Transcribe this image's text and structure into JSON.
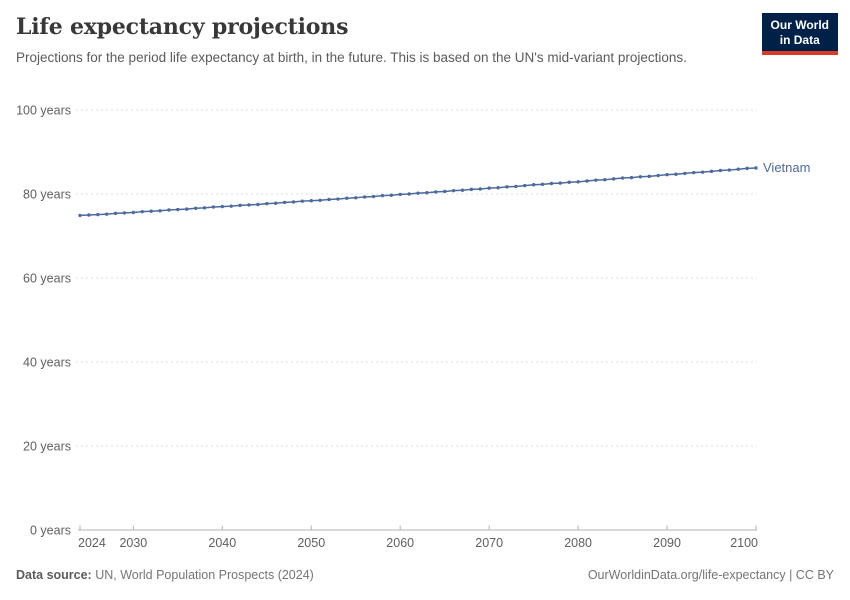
{
  "header": {
    "title": "Life expectancy projections",
    "subtitle": "Projections for the period life expectancy at birth, in the future. This is based on the UN's mid-variant projections.",
    "logo": {
      "line1": "Our World",
      "line2": "in Data",
      "bg_color": "#002147",
      "accent_color": "#D93A2B"
    }
  },
  "chart_data": {
    "type": "line",
    "title": "Life expectancy projections",
    "xlabel": "",
    "ylabel": "",
    "xlim": [
      2024,
      2100
    ],
    "ylim": [
      0,
      100
    ],
    "grid": "horizontal-dashed",
    "legend_position": "end-of-line-label",
    "x_ticks": [
      2024,
      2030,
      2040,
      2050,
      2060,
      2070,
      2080,
      2090,
      2100
    ],
    "y_ticks": [
      {
        "value": 0,
        "label": "0 years"
      },
      {
        "value": 20,
        "label": "20 years"
      },
      {
        "value": 40,
        "label": "40 years"
      },
      {
        "value": 60,
        "label": "60 years"
      },
      {
        "value": 80,
        "label": "80 years"
      },
      {
        "value": 100,
        "label": "100 years"
      }
    ],
    "x": [
      2024,
      2025,
      2026,
      2027,
      2028,
      2029,
      2030,
      2031,
      2032,
      2033,
      2034,
      2035,
      2036,
      2037,
      2038,
      2039,
      2040,
      2041,
      2042,
      2043,
      2044,
      2045,
      2046,
      2047,
      2048,
      2049,
      2050,
      2051,
      2052,
      2053,
      2054,
      2055,
      2056,
      2057,
      2058,
      2059,
      2060,
      2061,
      2062,
      2063,
      2064,
      2065,
      2066,
      2067,
      2068,
      2069,
      2070,
      2071,
      2072,
      2073,
      2074,
      2075,
      2076,
      2077,
      2078,
      2079,
      2080,
      2081,
      2082,
      2083,
      2084,
      2085,
      2086,
      2087,
      2088,
      2089,
      2090,
      2091,
      2092,
      2093,
      2094,
      2095,
      2096,
      2097,
      2098,
      2099,
      2100
    ],
    "series": [
      {
        "name": "Vietnam",
        "color": "#4C6A9C",
        "values": [
          74.9,
          75.0,
          75.1,
          75.2,
          75.4,
          75.5,
          75.6,
          75.8,
          75.9,
          76.0,
          76.2,
          76.3,
          76.4,
          76.6,
          76.7,
          76.9,
          77.0,
          77.1,
          77.3,
          77.4,
          77.5,
          77.7,
          77.8,
          78.0,
          78.1,
          78.3,
          78.4,
          78.5,
          78.7,
          78.8,
          79.0,
          79.1,
          79.3,
          79.4,
          79.6,
          79.7,
          79.9,
          80.0,
          80.2,
          80.3,
          80.5,
          80.6,
          80.8,
          80.9,
          81.1,
          81.2,
          81.4,
          81.5,
          81.7,
          81.8,
          82.0,
          82.2,
          82.3,
          82.5,
          82.6,
          82.8,
          82.9,
          83.1,
          83.3,
          83.4,
          83.6,
          83.8,
          83.9,
          84.1,
          84.2,
          84.4,
          84.6,
          84.7,
          84.9,
          85.1,
          85.2,
          85.4,
          85.6,
          85.7,
          85.9,
          86.1,
          86.2
        ]
      }
    ]
  },
  "footer": {
    "source_label": "Data source:",
    "source_text": " UN, World Population Prospects (2024)",
    "credit": "OurWorldinData.org/life-expectancy | CC BY"
  }
}
